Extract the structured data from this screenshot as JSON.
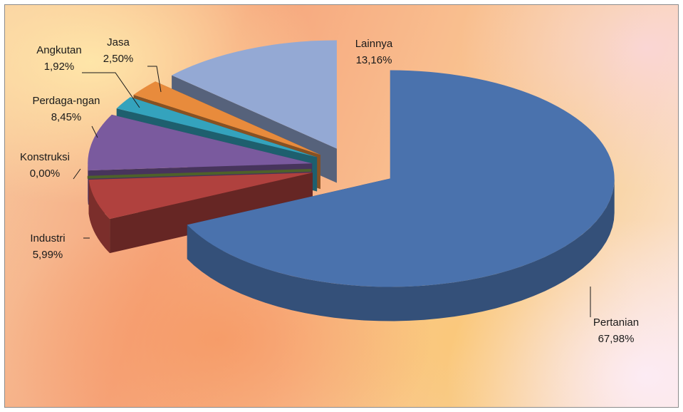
{
  "chart_data": {
    "type": "pie",
    "title": "",
    "categories": [
      "Pertanian",
      "Industri",
      "Konstruksi",
      "Perdaga-ngan",
      "Angkutan",
      "Jasa",
      "Lainnya"
    ],
    "values": [
      67.98,
      5.99,
      0.0,
      8.45,
      1.92,
      2.5,
      13.16
    ],
    "value_labels": [
      "67,98%",
      "5,99%",
      "0,00%",
      "8,45%",
      "1,92%",
      "2,50%",
      "13,16%"
    ],
    "colors": [
      "#4a72ad",
      "#b0413e",
      "#6f8a3c",
      "#7a5a9e",
      "#34a3bd",
      "#e88b3c",
      "#94a9d4"
    ],
    "style": "3d-exploded",
    "legend": "none",
    "data_labels": "category-and-percent"
  }
}
